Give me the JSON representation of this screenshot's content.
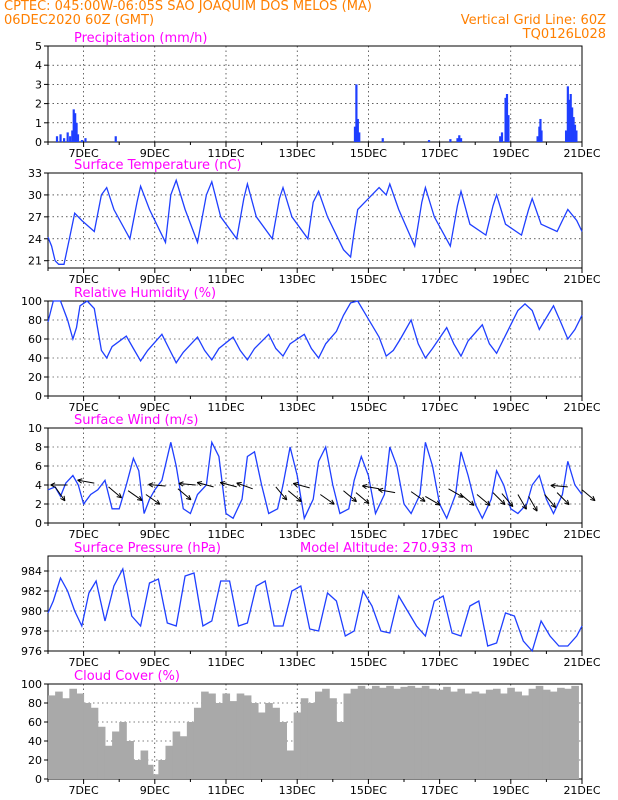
{
  "header": {
    "line1": "CPTEC:   045:00W-06:05S  SAO JOAQUIM DOS MELOS (MA)",
    "line2_left": "06DEC2020 60Z (GMT)",
    "line2_right": "Vertical Grid Line: 60Z",
    "line3_right": "TQ0126L028",
    "model_altitude": "Model Altitude: 270.933 m"
  },
  "colors": {
    "header": "#ff7f00",
    "title": "#ff00ff",
    "line": "#1f3fff",
    "cloud": "#a9a9a9",
    "wind_arrow": "#000000"
  },
  "chart_data": [
    {
      "type": "bar",
      "title": "Precipitation (mm/h)",
      "ylim": [
        0,
        5
      ],
      "yticks": [
        0,
        1,
        2,
        3,
        4,
        5
      ],
      "xlim": [
        6.0,
        21.0
      ],
      "xtick_labels": [
        "7DEC",
        "9DEC",
        "11DEC",
        "13DEC",
        "15DEC",
        "17DEC",
        "19DEC",
        "21DEC"
      ],
      "points": [
        [
          6.25,
          0.3
        ],
        [
          6.35,
          0.4
        ],
        [
          6.45,
          0.2
        ],
        [
          6.55,
          0.5
        ],
        [
          6.62,
          0.3
        ],
        [
          6.68,
          0.6
        ],
        [
          6.72,
          1.7
        ],
        [
          6.76,
          1.5
        ],
        [
          6.8,
          1.0
        ],
        [
          6.84,
          0.4
        ],
        [
          6.95,
          0.1
        ],
        [
          7.05,
          0.2
        ],
        [
          7.9,
          0.3
        ],
        [
          14.62,
          0.8
        ],
        [
          14.66,
          3.0
        ],
        [
          14.7,
          1.2
        ],
        [
          14.74,
          0.5
        ],
        [
          15.4,
          0.2
        ],
        [
          16.7,
          0.1
        ],
        [
          17.3,
          0.15
        ],
        [
          17.5,
          0.2
        ],
        [
          17.55,
          0.35
        ],
        [
          17.6,
          0.2
        ],
        [
          18.7,
          0.3
        ],
        [
          18.75,
          0.5
        ],
        [
          18.85,
          2.3
        ],
        [
          18.89,
          2.5
        ],
        [
          18.93,
          1.4
        ],
        [
          19.75,
          0.3
        ],
        [
          19.8,
          0.8
        ],
        [
          19.83,
          1.2
        ],
        [
          19.86,
          0.6
        ],
        [
          20.55,
          0.6
        ],
        [
          20.6,
          2.9
        ],
        [
          20.64,
          2.2
        ],
        [
          20.68,
          2.5
        ],
        [
          20.72,
          1.8
        ],
        [
          20.76,
          1.3
        ],
        [
          20.8,
          0.9
        ],
        [
          20.84,
          0.6
        ]
      ]
    },
    {
      "type": "line",
      "title": "Surface Temperature (nC)",
      "ylim": [
        20,
        33
      ],
      "yticks": [
        21,
        24,
        27,
        30,
        33
      ],
      "xlim": [
        6.0,
        21.0
      ],
      "xtick_labels": [
        "7DEC",
        "9DEC",
        "11DEC",
        "13DEC",
        "15DEC",
        "17DEC",
        "19DEC",
        "21DEC"
      ],
      "x": [
        6.0,
        6.1,
        6.2,
        6.3,
        6.45,
        6.6,
        6.75,
        6.95,
        7.3,
        7.5,
        7.65,
        7.85,
        8.3,
        8.5,
        8.6,
        8.85,
        9.3,
        9.45,
        9.6,
        9.85,
        10.2,
        10.45,
        10.6,
        10.85,
        11.3,
        11.5,
        11.6,
        11.85,
        12.3,
        12.5,
        12.6,
        12.85,
        13.3,
        13.45,
        13.6,
        13.85,
        14.3,
        14.5,
        14.6,
        14.7,
        15.3,
        15.5,
        15.6,
        15.85,
        16.3,
        16.5,
        16.6,
        16.85,
        17.3,
        17.5,
        17.6,
        17.85,
        18.3,
        18.5,
        18.6,
        18.85,
        19.3,
        19.5,
        19.6,
        19.85,
        20.3,
        20.45,
        20.6,
        20.85,
        21.0
      ],
      "y": [
        24.2,
        23.0,
        21.0,
        20.5,
        20.5,
        24.0,
        27.5,
        26.5,
        25.0,
        30.0,
        31.0,
        28.0,
        24.0,
        29.0,
        31.2,
        28.0,
        23.5,
        30.0,
        32.0,
        28.0,
        23.5,
        30.0,
        31.8,
        27.0,
        24.0,
        29.5,
        31.5,
        27.0,
        24.0,
        29.5,
        31.0,
        27.0,
        24.0,
        29.0,
        30.5,
        27.0,
        22.5,
        21.5,
        25.0,
        28.0,
        31.0,
        30.0,
        31.5,
        28.0,
        23.0,
        29.0,
        31.0,
        27.0,
        23.0,
        28.5,
        30.5,
        26.0,
        24.5,
        28.5,
        30.0,
        26.0,
        24.5,
        28.0,
        29.5,
        26.0,
        25.0,
        26.5,
        28.0,
        26.5,
        25.0
      ]
    },
    {
      "type": "line",
      "title": "Relative Humidity (%)",
      "ylim": [
        0,
        100
      ],
      "yticks": [
        0,
        20,
        40,
        60,
        80,
        100
      ],
      "xlim": [
        6.0,
        21.0
      ],
      "xtick_labels": [
        "7DEC",
        "9DEC",
        "11DEC",
        "13DEC",
        "15DEC",
        "17DEC",
        "19DEC",
        "21DEC"
      ],
      "x": [
        6.0,
        6.15,
        6.35,
        6.55,
        6.7,
        6.8,
        6.9,
        7.1,
        7.3,
        7.5,
        7.65,
        7.8,
        8.2,
        8.4,
        8.6,
        8.8,
        9.2,
        9.4,
        9.6,
        9.8,
        10.2,
        10.4,
        10.6,
        10.8,
        11.2,
        11.4,
        11.6,
        11.8,
        12.2,
        12.4,
        12.6,
        12.8,
        13.2,
        13.4,
        13.6,
        13.8,
        14.1,
        14.3,
        14.5,
        14.7,
        15.3,
        15.5,
        15.7,
        15.9,
        16.2,
        16.4,
        16.6,
        16.8,
        17.2,
        17.4,
        17.6,
        17.8,
        18.2,
        18.4,
        18.6,
        18.8,
        19.2,
        19.4,
        19.6,
        19.8,
        20.2,
        20.4,
        20.6,
        20.8,
        21.0
      ],
      "y": [
        78,
        100,
        100,
        80,
        60,
        72,
        95,
        100,
        92,
        48,
        40,
        52,
        63,
        50,
        37,
        48,
        65,
        50,
        35,
        46,
        62,
        48,
        38,
        50,
        62,
        48,
        38,
        50,
        65,
        50,
        42,
        55,
        65,
        50,
        40,
        55,
        68,
        85,
        98,
        100,
        62,
        42,
        48,
        60,
        80,
        55,
        40,
        50,
        72,
        55,
        42,
        58,
        75,
        55,
        45,
        60,
        90,
        97,
        90,
        70,
        95,
        78,
        60,
        70,
        85
      ]
    },
    {
      "type": "line",
      "title": "Surface Wind (m/s)",
      "ylim": [
        0,
        10
      ],
      "yticks": [
        0,
        2,
        4,
        6,
        8,
        10
      ],
      "xlim": [
        6.0,
        21.0
      ],
      "xtick_labels": [
        "7DEC",
        "9DEC",
        "11DEC",
        "13DEC",
        "15DEC",
        "17DEC",
        "19DEC",
        "21DEC"
      ],
      "x": [
        6.0,
        6.2,
        6.35,
        6.5,
        6.7,
        6.85,
        7.0,
        7.2,
        7.4,
        7.6,
        7.8,
        8.0,
        8.2,
        8.4,
        8.55,
        8.7,
        8.85,
        9.0,
        9.2,
        9.45,
        9.6,
        9.8,
        10.0,
        10.2,
        10.45,
        10.6,
        10.8,
        11.0,
        11.2,
        11.45,
        11.6,
        11.8,
        12.0,
        12.2,
        12.45,
        12.6,
        12.8,
        13.0,
        13.2,
        13.45,
        13.6,
        13.8,
        14.0,
        14.2,
        14.45,
        14.6,
        14.8,
        15.0,
        15.2,
        15.45,
        15.6,
        15.8,
        16.0,
        16.2,
        16.45,
        16.6,
        16.8,
        17.0,
        17.2,
        17.45,
        17.6,
        17.8,
        18.0,
        18.2,
        18.45,
        18.6,
        18.8,
        19.0,
        19.2,
        19.45,
        19.6,
        19.8,
        20.0,
        20.2,
        20.45,
        20.6,
        20.8,
        21.0
      ],
      "y": [
        3.5,
        3.8,
        2.8,
        4.2,
        5.0,
        4.0,
        2.0,
        3.0,
        3.5,
        4.5,
        1.5,
        1.5,
        4.0,
        6.8,
        5.5,
        1.0,
        2.5,
        3.5,
        4.5,
        8.5,
        6.0,
        1.5,
        1.0,
        3.0,
        4.0,
        8.5,
        7.0,
        1.0,
        0.5,
        2.5,
        7.0,
        7.5,
        4.0,
        1.0,
        1.5,
        4.0,
        8.0,
        5.0,
        0.5,
        2.5,
        6.5,
        8.0,
        4.0,
        1.0,
        1.5,
        4.5,
        7.0,
        5.0,
        1.0,
        3.0,
        8.0,
        6.0,
        2.0,
        1.0,
        3.0,
        8.5,
        6.0,
        2.0,
        0.5,
        3.0,
        7.5,
        5.0,
        2.0,
        0.5,
        2.5,
        5.5,
        4.0,
        1.5,
        1.0,
        2.0,
        4.0,
        5.0,
        2.5,
        1.0,
        3.0,
        6.5,
        4.0,
        3.0
      ],
      "arrows": [
        [
          6.2,
          3.8,
          -55
        ],
        [
          6.55,
          4.0,
          180
        ],
        [
          7.3,
          4.2,
          170
        ],
        [
          7.7,
          3.8,
          -40
        ],
        [
          8.25,
          3.4,
          -35
        ],
        [
          8.75,
          3.0,
          -35
        ],
        [
          9.3,
          3.9,
          175
        ],
        [
          9.65,
          3.6,
          -40
        ],
        [
          10.15,
          4.0,
          175
        ],
        [
          10.65,
          3.8,
          165
        ],
        [
          11.3,
          3.8,
          165
        ],
        [
          11.75,
          3.6,
          160
        ],
        [
          12.4,
          3.8,
          -50
        ],
        [
          12.75,
          3.4,
          -40
        ],
        [
          13.35,
          3.7,
          165
        ],
        [
          13.65,
          3.0,
          -35
        ],
        [
          14.3,
          3.4,
          -40
        ],
        [
          14.65,
          3.2,
          -40
        ],
        [
          15.3,
          3.6,
          170
        ],
        [
          15.75,
          3.2,
          170
        ],
        [
          16.2,
          3.3,
          -35
        ],
        [
          16.6,
          2.8,
          -30
        ],
        [
          17.25,
          3.6,
          -30
        ],
        [
          17.6,
          3.0,
          -40
        ],
        [
          18.05,
          3.0,
          -40
        ],
        [
          18.5,
          3.2,
          -45
        ],
        [
          18.75,
          3.1,
          -50
        ],
        [
          19.2,
          3.0,
          -60
        ],
        [
          19.5,
          2.8,
          -60
        ],
        [
          19.95,
          3.0,
          -50
        ],
        [
          20.3,
          3.2,
          -45
        ],
        [
          20.6,
          3.8,
          175
        ],
        [
          21.0,
          3.5,
          -40
        ]
      ]
    },
    {
      "type": "line",
      "title": "Surface Pressure (hPa)",
      "ylim": [
        976,
        985.5
      ],
      "yticks": [
        976,
        978,
        980,
        982,
        984
      ],
      "xlim": [
        6.0,
        21.0
      ],
      "xtick_labels": [
        "7DEC",
        "9DEC",
        "11DEC",
        "13DEC",
        "15DEC",
        "17DEC",
        "19DEC",
        "21DEC"
      ],
      "x": [
        6.0,
        6.15,
        6.35,
        6.55,
        6.75,
        6.95,
        7.15,
        7.35,
        7.6,
        7.85,
        8.1,
        8.35,
        8.6,
        8.85,
        9.1,
        9.35,
        9.6,
        9.85,
        10.1,
        10.35,
        10.6,
        10.85,
        11.1,
        11.35,
        11.6,
        11.85,
        12.1,
        12.35,
        12.6,
        12.85,
        13.1,
        13.35,
        13.6,
        13.85,
        14.1,
        14.35,
        14.6,
        14.85,
        15.1,
        15.35,
        15.6,
        15.85,
        16.1,
        16.35,
        16.6,
        16.85,
        17.1,
        17.35,
        17.6,
        17.85,
        18.1,
        18.35,
        18.6,
        18.85,
        19.1,
        19.35,
        19.6,
        19.85,
        20.1,
        20.35,
        20.6,
        20.85,
        21.0
      ],
      "y": [
        979.8,
        981.0,
        983.3,
        982.0,
        980.0,
        978.5,
        981.8,
        983.0,
        979.0,
        982.5,
        984.2,
        979.5,
        978.5,
        982.8,
        983.2,
        978.8,
        978.5,
        983.5,
        983.8,
        978.5,
        979.0,
        983.0,
        983.0,
        978.5,
        978.8,
        982.5,
        983.0,
        978.5,
        978.5,
        982.0,
        982.5,
        978.2,
        978.0,
        981.8,
        981.0,
        977.5,
        978.0,
        982.0,
        980.5,
        978.0,
        977.8,
        981.5,
        980.0,
        978.5,
        977.5,
        981.0,
        981.5,
        977.8,
        977.5,
        980.5,
        981.0,
        976.5,
        976.8,
        979.8,
        979.5,
        977.0,
        976.0,
        979.0,
        977.5,
        976.5,
        976.5,
        977.5,
        978.5
      ]
    },
    {
      "type": "bar",
      "title": "Cloud Cover (%)",
      "ylim": [
        0,
        100
      ],
      "yticks": [
        0,
        20,
        40,
        60,
        80,
        100
      ],
      "xlim": [
        6.0,
        21.0
      ],
      "xtick_labels": [
        "7DEC",
        "9DEC",
        "11DEC",
        "13DEC",
        "15DEC",
        "17DEC",
        "19DEC",
        "21DEC"
      ],
      "points": [
        [
          6.1,
          88
        ],
        [
          6.3,
          92
        ],
        [
          6.5,
          85
        ],
        [
          6.7,
          95
        ],
        [
          6.9,
          90
        ],
        [
          7.1,
          80
        ],
        [
          7.3,
          75
        ],
        [
          7.5,
          55
        ],
        [
          7.7,
          35
        ],
        [
          7.9,
          50
        ],
        [
          8.1,
          60
        ],
        [
          8.3,
          40
        ],
        [
          8.5,
          20
        ],
        [
          8.7,
          30
        ],
        [
          8.85,
          15
        ],
        [
          9.0,
          5
        ],
        [
          9.2,
          20
        ],
        [
          9.4,
          35
        ],
        [
          9.6,
          50
        ],
        [
          9.8,
          45
        ],
        [
          10.0,
          60
        ],
        [
          10.2,
          75
        ],
        [
          10.4,
          92
        ],
        [
          10.6,
          90
        ],
        [
          10.8,
          80
        ],
        [
          11.0,
          90
        ],
        [
          11.2,
          82
        ],
        [
          11.4,
          90
        ],
        [
          11.6,
          88
        ],
        [
          11.8,
          80
        ],
        [
          12.0,
          70
        ],
        [
          12.2,
          80
        ],
        [
          12.4,
          75
        ],
        [
          12.6,
          60
        ],
        [
          12.8,
          30
        ],
        [
          13.0,
          70
        ],
        [
          13.2,
          85
        ],
        [
          13.4,
          80
        ],
        [
          13.6,
          92
        ],
        [
          13.8,
          95
        ],
        [
          14.0,
          85
        ],
        [
          14.2,
          60
        ],
        [
          14.4,
          90
        ],
        [
          14.6,
          95
        ],
        [
          14.8,
          98
        ],
        [
          15.0,
          95
        ],
        [
          15.2,
          98
        ],
        [
          15.4,
          96
        ],
        [
          15.6,
          98
        ],
        [
          15.8,
          95
        ],
        [
          16.0,
          97
        ],
        [
          16.2,
          98
        ],
        [
          16.4,
          96
        ],
        [
          16.6,
          98
        ],
        [
          16.8,
          95
        ],
        [
          17.0,
          94
        ],
        [
          17.2,
          97
        ],
        [
          17.4,
          92
        ],
        [
          17.6,
          95
        ],
        [
          17.8,
          90
        ],
        [
          18.0,
          92
        ],
        [
          18.2,
          90
        ],
        [
          18.4,
          94
        ],
        [
          18.6,
          95
        ],
        [
          18.8,
          90
        ],
        [
          19.0,
          96
        ],
        [
          19.2,
          92
        ],
        [
          19.4,
          88
        ],
        [
          19.6,
          95
        ],
        [
          19.8,
          98
        ],
        [
          20.0,
          94
        ],
        [
          20.2,
          92
        ],
        [
          20.4,
          96
        ],
        [
          20.6,
          95
        ],
        [
          20.8,
          98
        ]
      ]
    }
  ]
}
